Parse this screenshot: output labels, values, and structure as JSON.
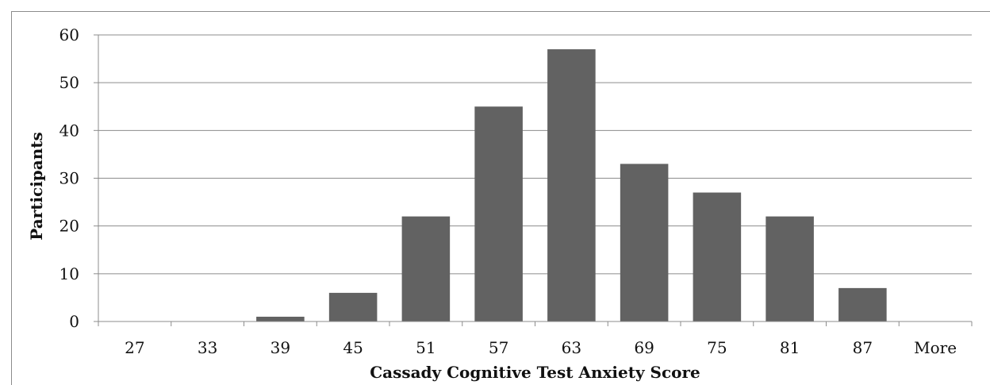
{
  "chart_data": {
    "type": "bar",
    "categories": [
      "27",
      "33",
      "39",
      "45",
      "51",
      "57",
      "63",
      "69",
      "75",
      "81",
      "87",
      "More"
    ],
    "values": [
      0,
      0,
      1,
      6,
      22,
      45,
      57,
      33,
      27,
      22,
      7,
      0
    ],
    "title": "",
    "xlabel": "Cassady Cognitive Test Anxiety Score",
    "ylabel": "Participants",
    "ylim": [
      0,
      60
    ],
    "yticks": [
      0,
      10,
      20,
      30,
      40,
      50,
      60
    ],
    "grid": true,
    "legend": "none",
    "bar_color": "#626262",
    "grid_color": "#8c8c8c"
  }
}
